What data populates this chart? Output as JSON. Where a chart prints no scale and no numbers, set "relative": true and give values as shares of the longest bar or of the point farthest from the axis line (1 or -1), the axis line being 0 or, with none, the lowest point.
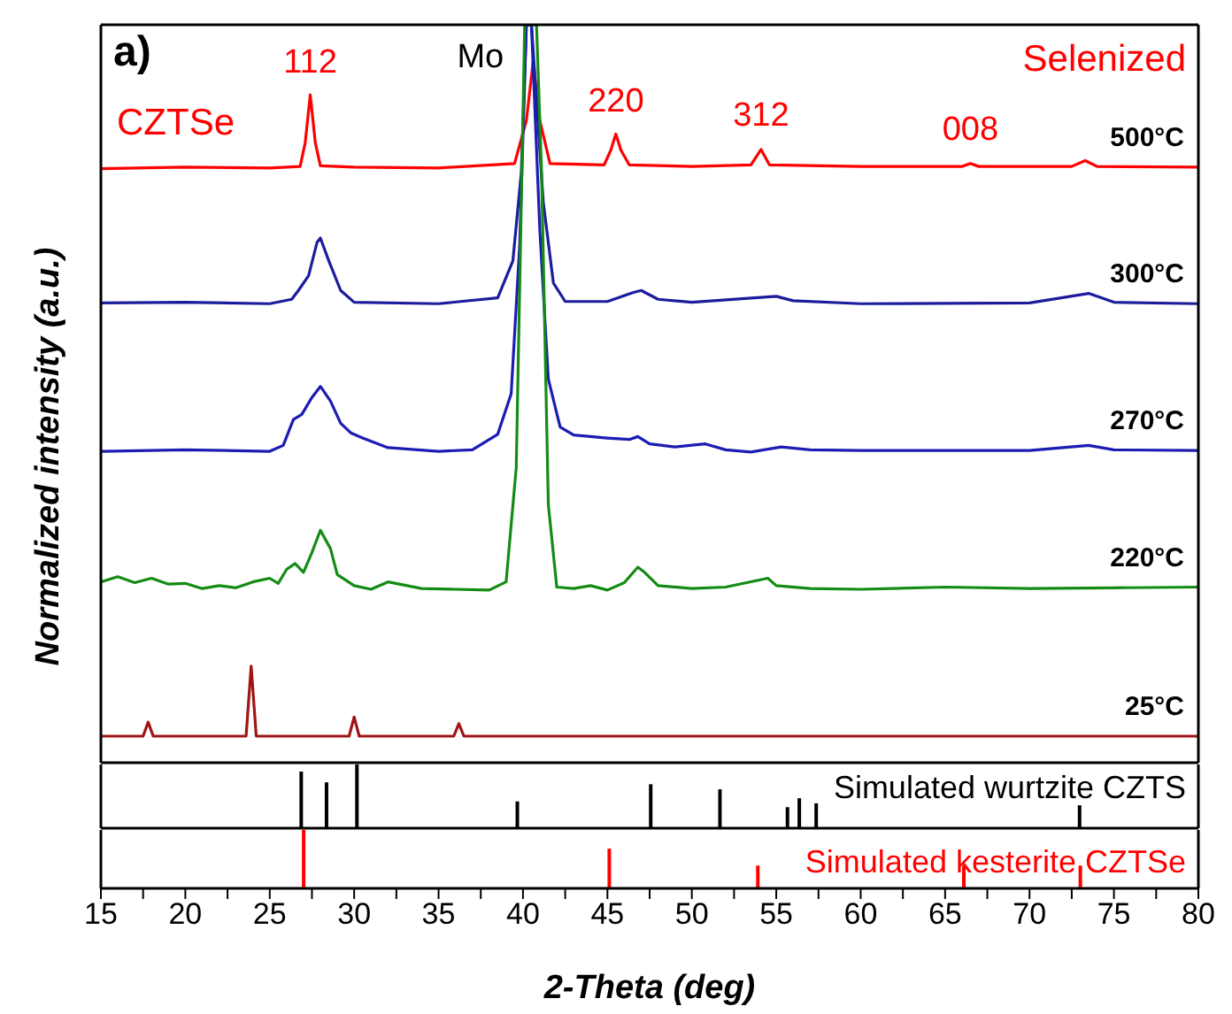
{
  "chart_data": [
    {
      "type": "line",
      "relative": true,
      "tick_labels": false,
      "ylabel": "Normalized intensity (a.u.)",
      "xlim": [
        15,
        80
      ],
      "annotations": [
        "a)",
        "CZTSe",
        "Selenized",
        "Mo",
        {
          "text": "112",
          "x": 27.4,
          "y": 0.905
        },
        {
          "text": "220",
          "x": 45.5,
          "y": 0.852
        },
        {
          "text": "312",
          "x": 54.1,
          "y": 0.831
        },
        {
          "text": "008",
          "x": 66.5,
          "y": 0.812
        }
      ],
      "series": [
        {
          "name": "500°C",
          "color": "#ff0000",
          "x": [
            15,
            20,
            25,
            26.8,
            27.1,
            27.4,
            27.7,
            28,
            30,
            35,
            39.5,
            40.2,
            40.6,
            41,
            41.6,
            44.8,
            45.2,
            45.5,
            45.8,
            46.3,
            50,
            53.5,
            54.1,
            54.6,
            60,
            66,
            66.5,
            67,
            72.5,
            73.3,
            74,
            80
          ],
          "values": [
            0.805,
            0.807,
            0.806,
            0.808,
            0.84,
            0.905,
            0.84,
            0.809,
            0.807,
            0.806,
            0.812,
            0.87,
            0.95,
            0.87,
            0.812,
            0.81,
            0.83,
            0.852,
            0.83,
            0.81,
            0.808,
            0.81,
            0.831,
            0.81,
            0.808,
            0.808,
            0.812,
            0.808,
            0.808,
            0.816,
            0.808,
            0.807
          ]
        },
        {
          "name": "300°C",
          "color": "#1c1c9c",
          "x": [
            15,
            20,
            25,
            26.3,
            26.7,
            27.3,
            27.8,
            28,
            28.5,
            29.2,
            30,
            35,
            38.5,
            39.4,
            39.9,
            40.2,
            40.5,
            41.2,
            41.8,
            42.5,
            45,
            46.5,
            47,
            48,
            50,
            55,
            56,
            60,
            70,
            73.5,
            75,
            80
          ],
          "values": [
            0.623,
            0.624,
            0.622,
            0.628,
            0.64,
            0.66,
            0.705,
            0.711,
            0.68,
            0.64,
            0.624,
            0.622,
            0.63,
            0.68,
            0.8,
            1,
            1,
            0.76,
            0.65,
            0.625,
            0.625,
            0.637,
            0.64,
            0.628,
            0.624,
            0.632,
            0.626,
            0.622,
            0.623,
            0.636,
            0.624,
            0.622
          ]
        },
        {
          "name": "270°C",
          "color": "#1c1cb4",
          "x": [
            15,
            20,
            25,
            25.8,
            26.4,
            26.9,
            27.5,
            28,
            28.6,
            29.2,
            29.8,
            30.5,
            32,
            35,
            37,
            38.5,
            39.3,
            39.8,
            40.2,
            40.5,
            41,
            41.5,
            42.2,
            43,
            45,
            46.3,
            46.8,
            47.5,
            49,
            50.8,
            52,
            53.5,
            55.3,
            57,
            60,
            70,
            73.5,
            75,
            80
          ],
          "values": [
            0.422,
            0.424,
            0.422,
            0.43,
            0.465,
            0.472,
            0.495,
            0.51,
            0.49,
            0.46,
            0.447,
            0.44,
            0.427,
            0.422,
            0.424,
            0.445,
            0.5,
            0.7,
            1,
            1,
            0.72,
            0.52,
            0.455,
            0.444,
            0.44,
            0.438,
            0.442,
            0.432,
            0.428,
            0.432,
            0.424,
            0.421,
            0.428,
            0.424,
            0.423,
            0.423,
            0.43,
            0.424,
            0.423
          ]
        },
        {
          "name": "220°C",
          "color": "#148c14",
          "x": [
            15,
            16,
            17,
            18,
            19,
            20,
            21,
            22,
            23,
            24,
            25,
            25.5,
            26,
            26.5,
            27,
            27.5,
            28,
            28.6,
            29,
            30,
            31,
            32,
            34,
            36,
            38,
            39,
            39.6,
            40.1,
            40.4,
            40.8,
            41.1,
            41.5,
            42,
            43,
            44,
            45,
            46,
            46.8,
            47.2,
            48,
            50,
            52,
            54.5,
            55,
            57,
            60,
            65,
            70,
            75,
            80
          ],
          "values": [
            0.245,
            0.252,
            0.244,
            0.25,
            0.242,
            0.243,
            0.236,
            0.24,
            0.237,
            0.245,
            0.25,
            0.243,
            0.262,
            0.27,
            0.258,
            0.285,
            0.315,
            0.29,
            0.255,
            0.24,
            0.235,
            0.245,
            0.236,
            0.235,
            0.234,
            0.245,
            0.4,
            1,
            1,
            1,
            0.8,
            0.35,
            0.238,
            0.236,
            0.24,
            0.234,
            0.244,
            0.265,
            0.258,
            0.24,
            0.236,
            0.238,
            0.25,
            0.24,
            0.236,
            0.235,
            0.238,
            0.236,
            0.237,
            0.238
          ]
        },
        {
          "name": "25°C",
          "color": "#a01414",
          "x": [
            15,
            17.5,
            17.8,
            18.1,
            23.6,
            23.9,
            24.2,
            29.7,
            30,
            30.3,
            35.9,
            36.2,
            36.5,
            80
          ],
          "values": [
            0.036,
            0.036,
            0.055,
            0.036,
            0.036,
            0.131,
            0.036,
            0.036,
            0.062,
            0.036,
            0.036,
            0.053,
            0.036,
            0.036
          ]
        }
      ]
    },
    {
      "type": "bar",
      "relative": true,
      "tick_labels": false,
      "xlim": [
        15,
        80
      ],
      "series": [
        {
          "name": "Simulated wurtzite CZTS",
          "color": "#000000",
          "x": [
            26.9,
            28.4,
            30.2,
            39.7,
            47.6,
            51.7,
            55.7,
            56.4,
            57.4,
            73
          ],
          "values": [
            0.89,
            0.72,
            1,
            0.42,
            0.69,
            0.61,
            0.33,
            0.47,
            0.39,
            0.36
          ]
        }
      ]
    },
    {
      "type": "bar",
      "relative": true,
      "tick_labels": "x",
      "xlim": [
        15,
        80
      ],
      "xlabel": "2-Theta (deg)",
      "xticks": [
        15,
        {
          "value": 17.5,
          "label": null
        },
        20,
        {
          "value": 22.5,
          "label": null
        },
        25,
        {
          "value": 27.5,
          "label": null
        },
        30,
        {
          "value": 32.5,
          "label": null
        },
        35,
        {
          "value": 37.5,
          "label": null
        },
        40,
        {
          "value": 42.5,
          "label": null
        },
        45,
        {
          "value": 47.5,
          "label": null
        },
        50,
        {
          "value": 52.5,
          "label": null
        },
        55,
        {
          "value": 57.5,
          "label": null
        },
        60,
        {
          "value": 62.5,
          "label": null
        },
        65,
        {
          "value": 67.5,
          "label": null
        },
        70,
        {
          "value": 72.5,
          "label": null
        },
        75,
        {
          "value": 77.5,
          "label": null
        },
        80
      ],
      "series": [
        {
          "name": "Simulated kesterite CZTSe",
          "color": "#ff0000",
          "x": [
            27,
            45.1,
            53.9,
            66.1,
            73
          ],
          "values": [
            1,
            0.68,
            0.39,
            0.39,
            0.39
          ]
        }
      ]
    }
  ]
}
